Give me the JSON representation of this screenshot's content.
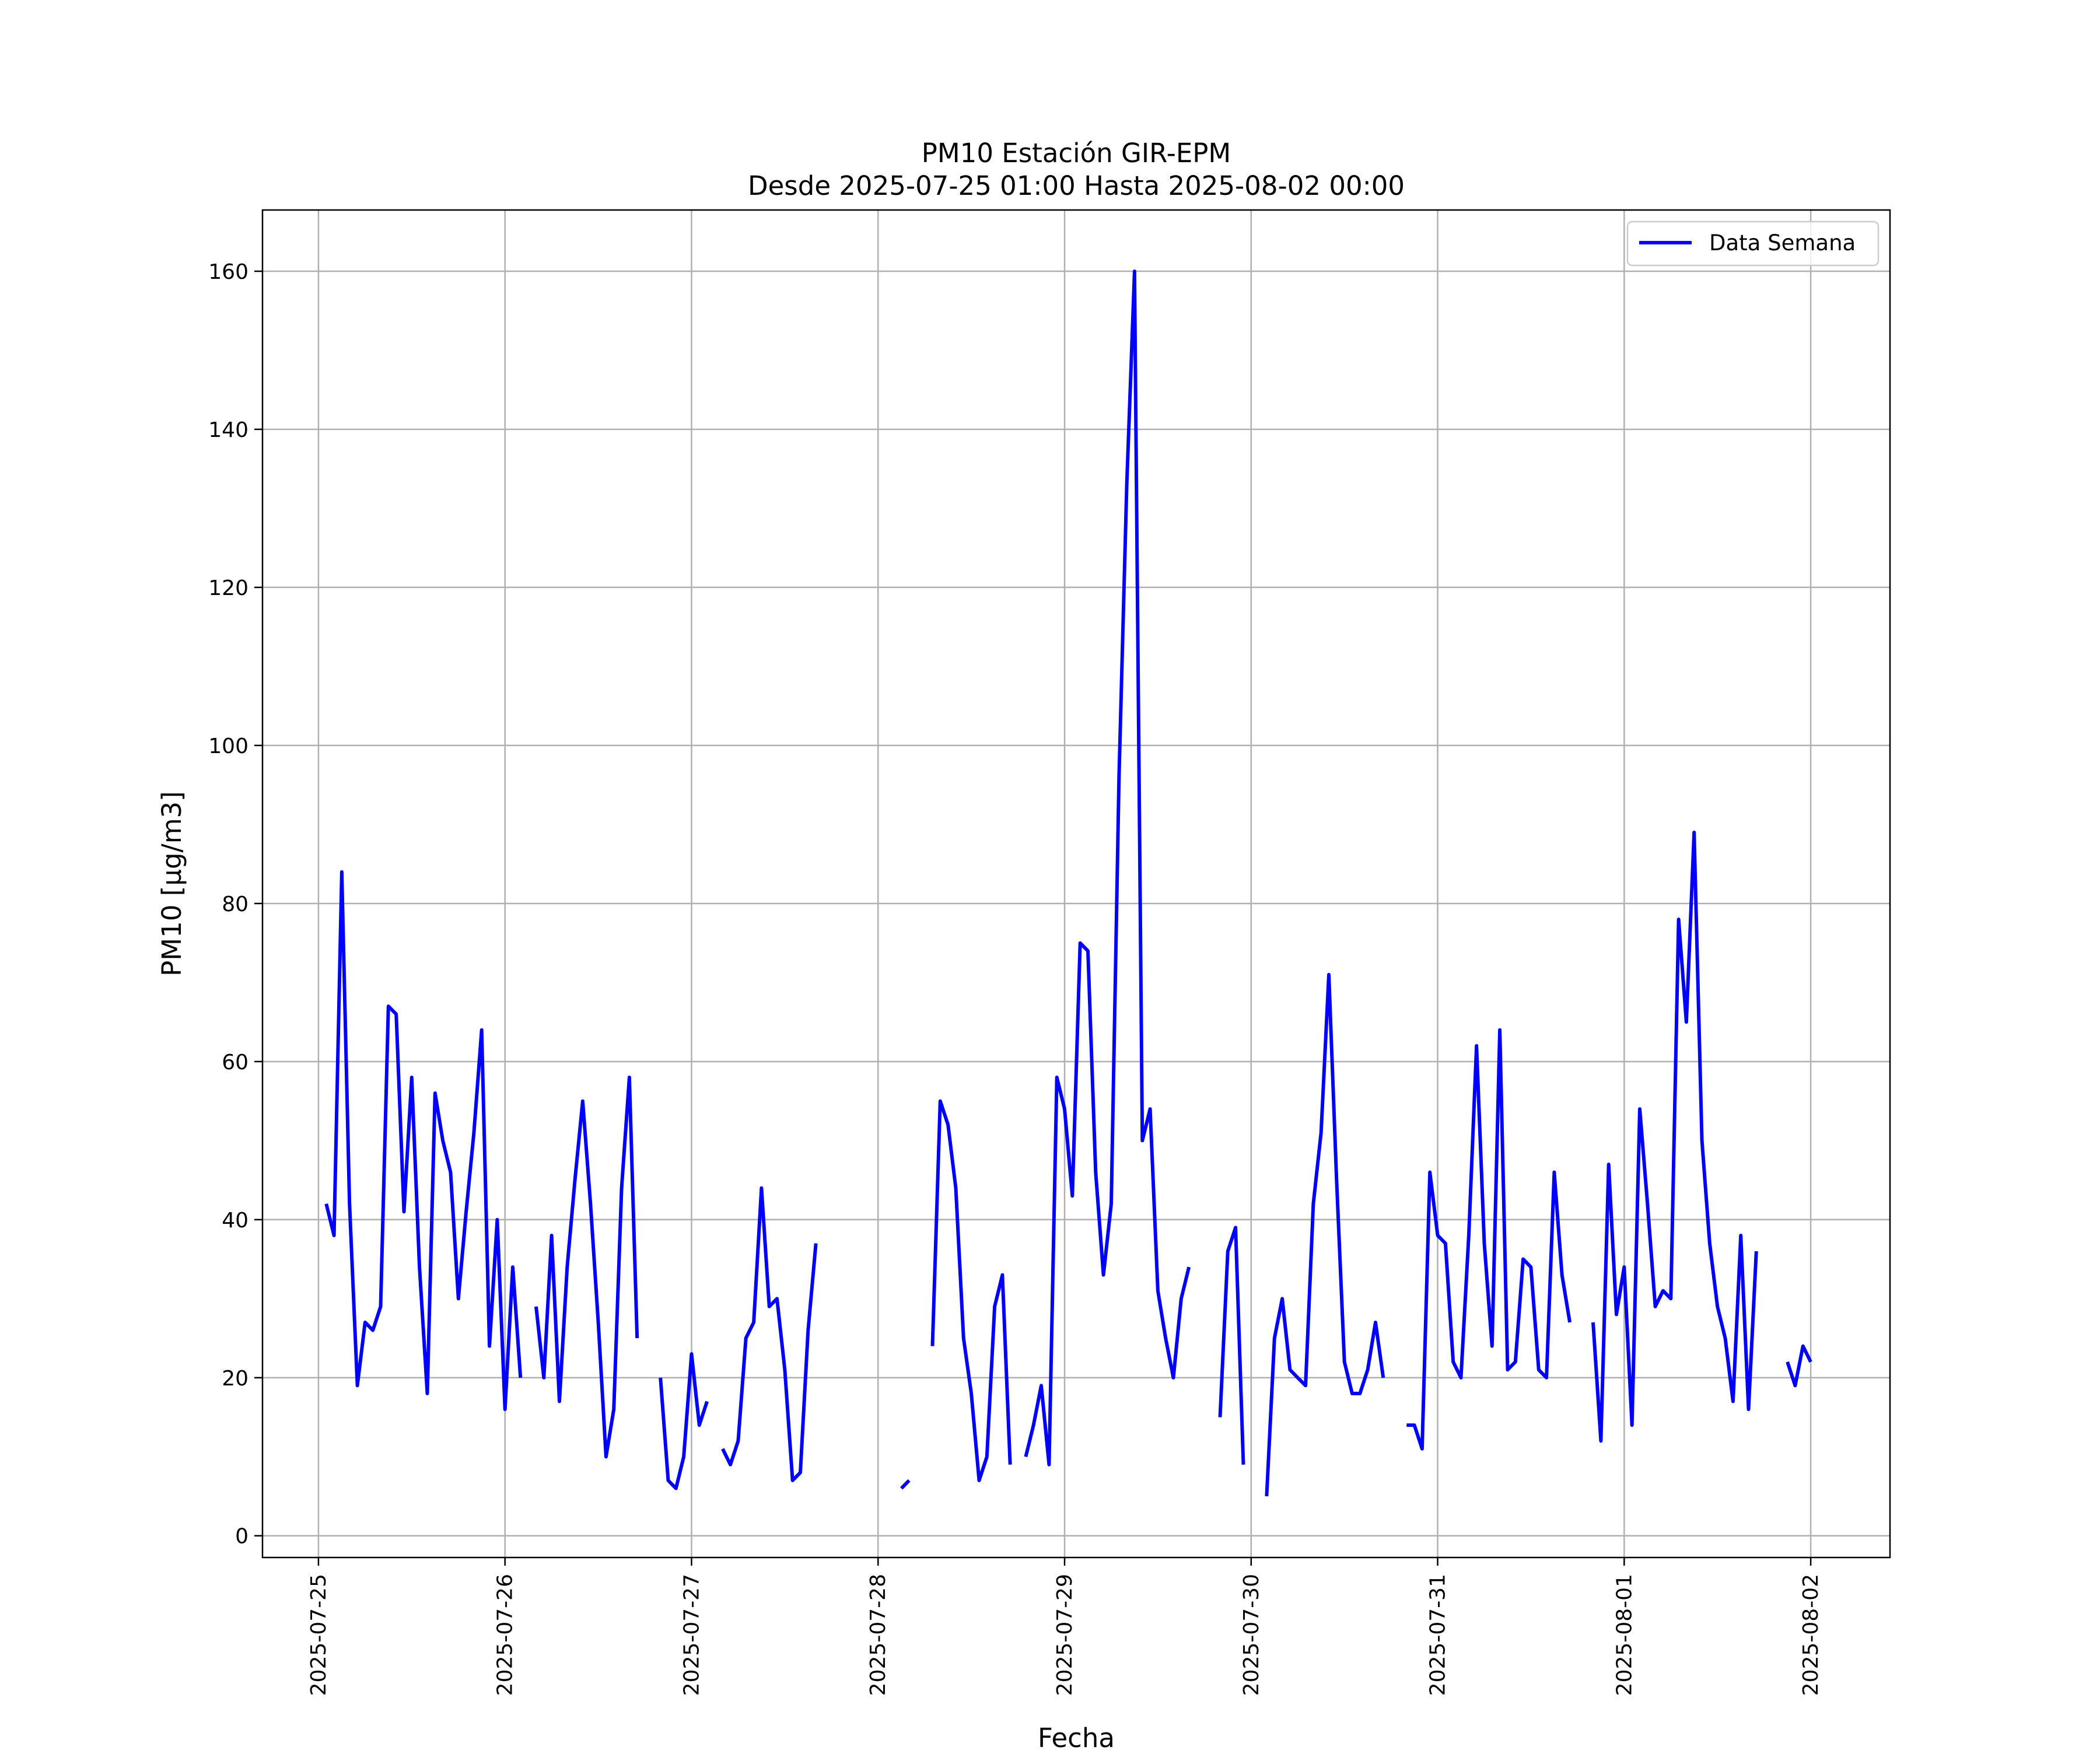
{
  "chart_data": {
    "type": "line",
    "title": "PM10 Estación GIR-EPM",
    "subtitle": "Desde 2025-07-25 01:00 Hasta 2025-08-02 00:00",
    "xlabel": "Fecha",
    "ylabel": "PM10 [μg/m3]",
    "xlim": [
      "2025-07-24 16:48",
      "2025-08-02 10:12"
    ],
    "ylim": [
      -2.75,
      167.75
    ],
    "x_ticks": [
      "2025-07-25",
      "2025-07-26",
      "2025-07-27",
      "2025-07-28",
      "2025-07-29",
      "2025-07-30",
      "2025-07-31",
      "2025-08-01",
      "2025-08-02"
    ],
    "y_ticks": [
      0,
      20,
      40,
      60,
      80,
      100,
      120,
      140,
      160
    ],
    "grid": true,
    "legend_position": "top-right",
    "colors": {
      "series": "#0000ff",
      "grid": "#b0b0b0",
      "axes": "#000000"
    },
    "series": [
      {
        "name": "Data Semana",
        "segments": [
          [
            [
              "2025-07-25 01:00",
              42
            ],
            [
              "2025-07-25 02:00",
              38
            ],
            [
              "2025-07-25 03:00",
              84
            ],
            [
              "2025-07-25 04:00",
              42
            ],
            [
              "2025-07-25 05:00",
              19
            ],
            [
              "2025-07-25 06:00",
              27
            ],
            [
              "2025-07-25 07:00",
              26
            ],
            [
              "2025-07-25 08:00",
              29
            ],
            [
              "2025-07-25 09:00",
              67
            ],
            [
              "2025-07-25 10:00",
              66
            ],
            [
              "2025-07-25 11:00",
              41
            ],
            [
              "2025-07-25 12:00",
              58
            ],
            [
              "2025-07-25 13:00",
              34
            ],
            [
              "2025-07-25 14:00",
              18
            ],
            [
              "2025-07-25 15:00",
              56
            ],
            [
              "2025-07-25 16:00",
              50
            ],
            [
              "2025-07-25 17:00",
              46
            ],
            [
              "2025-07-25 18:00",
              30
            ],
            [
              "2025-07-25 19:00",
              41
            ],
            [
              "2025-07-25 20:00",
              51
            ],
            [
              "2025-07-25 21:00",
              64
            ],
            [
              "2025-07-25 22:00",
              24
            ],
            [
              "2025-07-25 23:00",
              40
            ],
            [
              "2025-07-26 00:00",
              16
            ],
            [
              "2025-07-26 01:00",
              34
            ],
            [
              "2025-07-26 02:00",
              20
            ]
          ],
          [
            [
              "2025-07-26 04:00",
              29
            ],
            [
              "2025-07-26 05:00",
              20
            ],
            [
              "2025-07-26 06:00",
              38
            ],
            [
              "2025-07-26 07:00",
              17
            ],
            [
              "2025-07-26 08:00",
              34
            ],
            [
              "2025-07-26 09:00",
              45
            ],
            [
              "2025-07-26 10:00",
              55
            ],
            [
              "2025-07-26 11:00",
              42
            ],
            [
              "2025-07-26 12:00",
              27
            ],
            [
              "2025-07-26 13:00",
              10
            ],
            [
              "2025-07-26 14:00",
              16
            ],
            [
              "2025-07-26 15:00",
              44
            ],
            [
              "2025-07-26 16:00",
              58
            ],
            [
              "2025-07-26 17:00",
              25
            ]
          ],
          [
            [
              "2025-07-26 20:00",
              20
            ],
            [
              "2025-07-26 21:00",
              7
            ],
            [
              "2025-07-26 22:00",
              6
            ],
            [
              "2025-07-26 23:00",
              10
            ],
            [
              "2025-07-27 00:00",
              23
            ],
            [
              "2025-07-27 01:00",
              14
            ],
            [
              "2025-07-27 02:00",
              17
            ]
          ],
          [
            [
              "2025-07-27 04:00",
              11
            ],
            [
              "2025-07-27 05:00",
              9
            ],
            [
              "2025-07-27 06:00",
              12
            ],
            [
              "2025-07-27 07:00",
              25
            ],
            [
              "2025-07-27 08:00",
              27
            ],
            [
              "2025-07-27 09:00",
              44
            ],
            [
              "2025-07-27 10:00",
              29
            ],
            [
              "2025-07-27 11:00",
              30
            ],
            [
              "2025-07-27 12:00",
              21
            ],
            [
              "2025-07-27 13:00",
              7
            ],
            [
              "2025-07-27 14:00",
              8
            ],
            [
              "2025-07-27 15:00",
              26
            ],
            [
              "2025-07-27 16:00",
              37
            ]
          ],
          [
            [
              "2025-07-28 03:00",
              6
            ],
            [
              "2025-07-28 04:00",
              7
            ]
          ],
          [
            [
              "2025-07-28 07:00",
              24
            ],
            [
              "2025-07-28 08:00",
              55
            ],
            [
              "2025-07-28 09:00",
              52
            ],
            [
              "2025-07-28 10:00",
              44
            ],
            [
              "2025-07-28 11:00",
              25
            ],
            [
              "2025-07-28 12:00",
              18
            ],
            [
              "2025-07-28 13:00",
              7
            ],
            [
              "2025-07-28 14:00",
              10
            ],
            [
              "2025-07-28 15:00",
              29
            ],
            [
              "2025-07-28 16:00",
              33
            ],
            [
              "2025-07-28 17:00",
              9
            ]
          ],
          [
            [
              "2025-07-28 19:00",
              10
            ],
            [
              "2025-07-28 20:00",
              14
            ],
            [
              "2025-07-28 21:00",
              19
            ],
            [
              "2025-07-28 22:00",
              9
            ],
            [
              "2025-07-28 23:00",
              58
            ],
            [
              "2025-07-29 00:00",
              54
            ],
            [
              "2025-07-29 01:00",
              43
            ],
            [
              "2025-07-29 02:00",
              75
            ],
            [
              "2025-07-29 03:00",
              74
            ],
            [
              "2025-07-29 04:00",
              46
            ],
            [
              "2025-07-29 05:00",
              33
            ],
            [
              "2025-07-29 06:00",
              42
            ],
            [
              "2025-07-29 07:00",
              96
            ],
            [
              "2025-07-29 08:00",
              133
            ],
            [
              "2025-07-29 09:00",
              160
            ],
            [
              "2025-07-29 10:00",
              50
            ],
            [
              "2025-07-29 11:00",
              54
            ],
            [
              "2025-07-29 12:00",
              31
            ],
            [
              "2025-07-29 13:00",
              25
            ],
            [
              "2025-07-29 14:00",
              20
            ],
            [
              "2025-07-29 15:00",
              30
            ],
            [
              "2025-07-29 16:00",
              34
            ]
          ],
          [
            [
              "2025-07-29 20:00",
              15
            ],
            [
              "2025-07-29 21:00",
              36
            ],
            [
              "2025-07-29 22:00",
              39
            ],
            [
              "2025-07-29 23:00",
              9
            ]
          ],
          [
            [
              "2025-07-30 02:00",
              5
            ],
            [
              "2025-07-30 03:00",
              25
            ],
            [
              "2025-07-30 04:00",
              30
            ],
            [
              "2025-07-30 05:00",
              21
            ],
            [
              "2025-07-30 06:00",
              20
            ],
            [
              "2025-07-30 07:00",
              19
            ],
            [
              "2025-07-30 08:00",
              42
            ],
            [
              "2025-07-30 09:00",
              51
            ],
            [
              "2025-07-30 10:00",
              71
            ],
            [
              "2025-07-30 11:00",
              45
            ],
            [
              "2025-07-30 12:00",
              22
            ],
            [
              "2025-07-30 13:00",
              18
            ],
            [
              "2025-07-30 14:00",
              18
            ],
            [
              "2025-07-30 15:00",
              21
            ],
            [
              "2025-07-30 16:00",
              27
            ],
            [
              "2025-07-30 17:00",
              20
            ]
          ],
          [
            [
              "2025-07-30 20:00",
              14
            ],
            [
              "2025-07-30 21:00",
              14
            ],
            [
              "2025-07-30 22:00",
              11
            ],
            [
              "2025-07-30 23:00",
              46
            ],
            [
              "2025-07-31 00:00",
              38
            ],
            [
              "2025-07-31 01:00",
              37
            ],
            [
              "2025-07-31 02:00",
              22
            ],
            [
              "2025-07-31 03:00",
              20
            ],
            [
              "2025-07-31 04:00",
              38
            ],
            [
              "2025-07-31 05:00",
              62
            ],
            [
              "2025-07-31 06:00",
              37
            ],
            [
              "2025-07-31 07:00",
              24
            ],
            [
              "2025-07-31 08:00",
              64
            ],
            [
              "2025-07-31 09:00",
              21
            ],
            [
              "2025-07-31 10:00",
              22
            ],
            [
              "2025-07-31 11:00",
              35
            ],
            [
              "2025-07-31 12:00",
              34
            ],
            [
              "2025-07-31 13:00",
              21
            ],
            [
              "2025-07-31 14:00",
              20
            ],
            [
              "2025-07-31 15:00",
              46
            ],
            [
              "2025-07-31 16:00",
              33
            ],
            [
              "2025-07-31 17:00",
              27
            ]
          ],
          [
            [
              "2025-07-31 20:00",
              27
            ],
            [
              "2025-07-31 21:00",
              12
            ],
            [
              "2025-07-31 22:00",
              47
            ],
            [
              "2025-07-31 23:00",
              28
            ],
            [
              "2025-08-01 00:00",
              34
            ],
            [
              "2025-08-01 01:00",
              14
            ],
            [
              "2025-08-01 02:00",
              54
            ],
            [
              "2025-08-01 03:00",
              42
            ],
            [
              "2025-08-01 04:00",
              29
            ],
            [
              "2025-08-01 05:00",
              31
            ],
            [
              "2025-08-01 06:00",
              30
            ],
            [
              "2025-08-01 07:00",
              78
            ],
            [
              "2025-08-01 08:00",
              65
            ],
            [
              "2025-08-01 09:00",
              89
            ],
            [
              "2025-08-01 10:00",
              50
            ],
            [
              "2025-08-01 11:00",
              37
            ],
            [
              "2025-08-01 12:00",
              29
            ],
            [
              "2025-08-01 13:00",
              25
            ],
            [
              "2025-08-01 14:00",
              17
            ],
            [
              "2025-08-01 15:00",
              38
            ],
            [
              "2025-08-01 16:00",
              16
            ],
            [
              "2025-08-01 17:00",
              36
            ]
          ],
          [
            [
              "2025-08-01 21:00",
              22
            ],
            [
              "2025-08-01 22:00",
              19
            ],
            [
              "2025-08-01 23:00",
              24
            ],
            [
              "2025-08-02 00:00",
              22
            ]
          ]
        ]
      }
    ]
  }
}
